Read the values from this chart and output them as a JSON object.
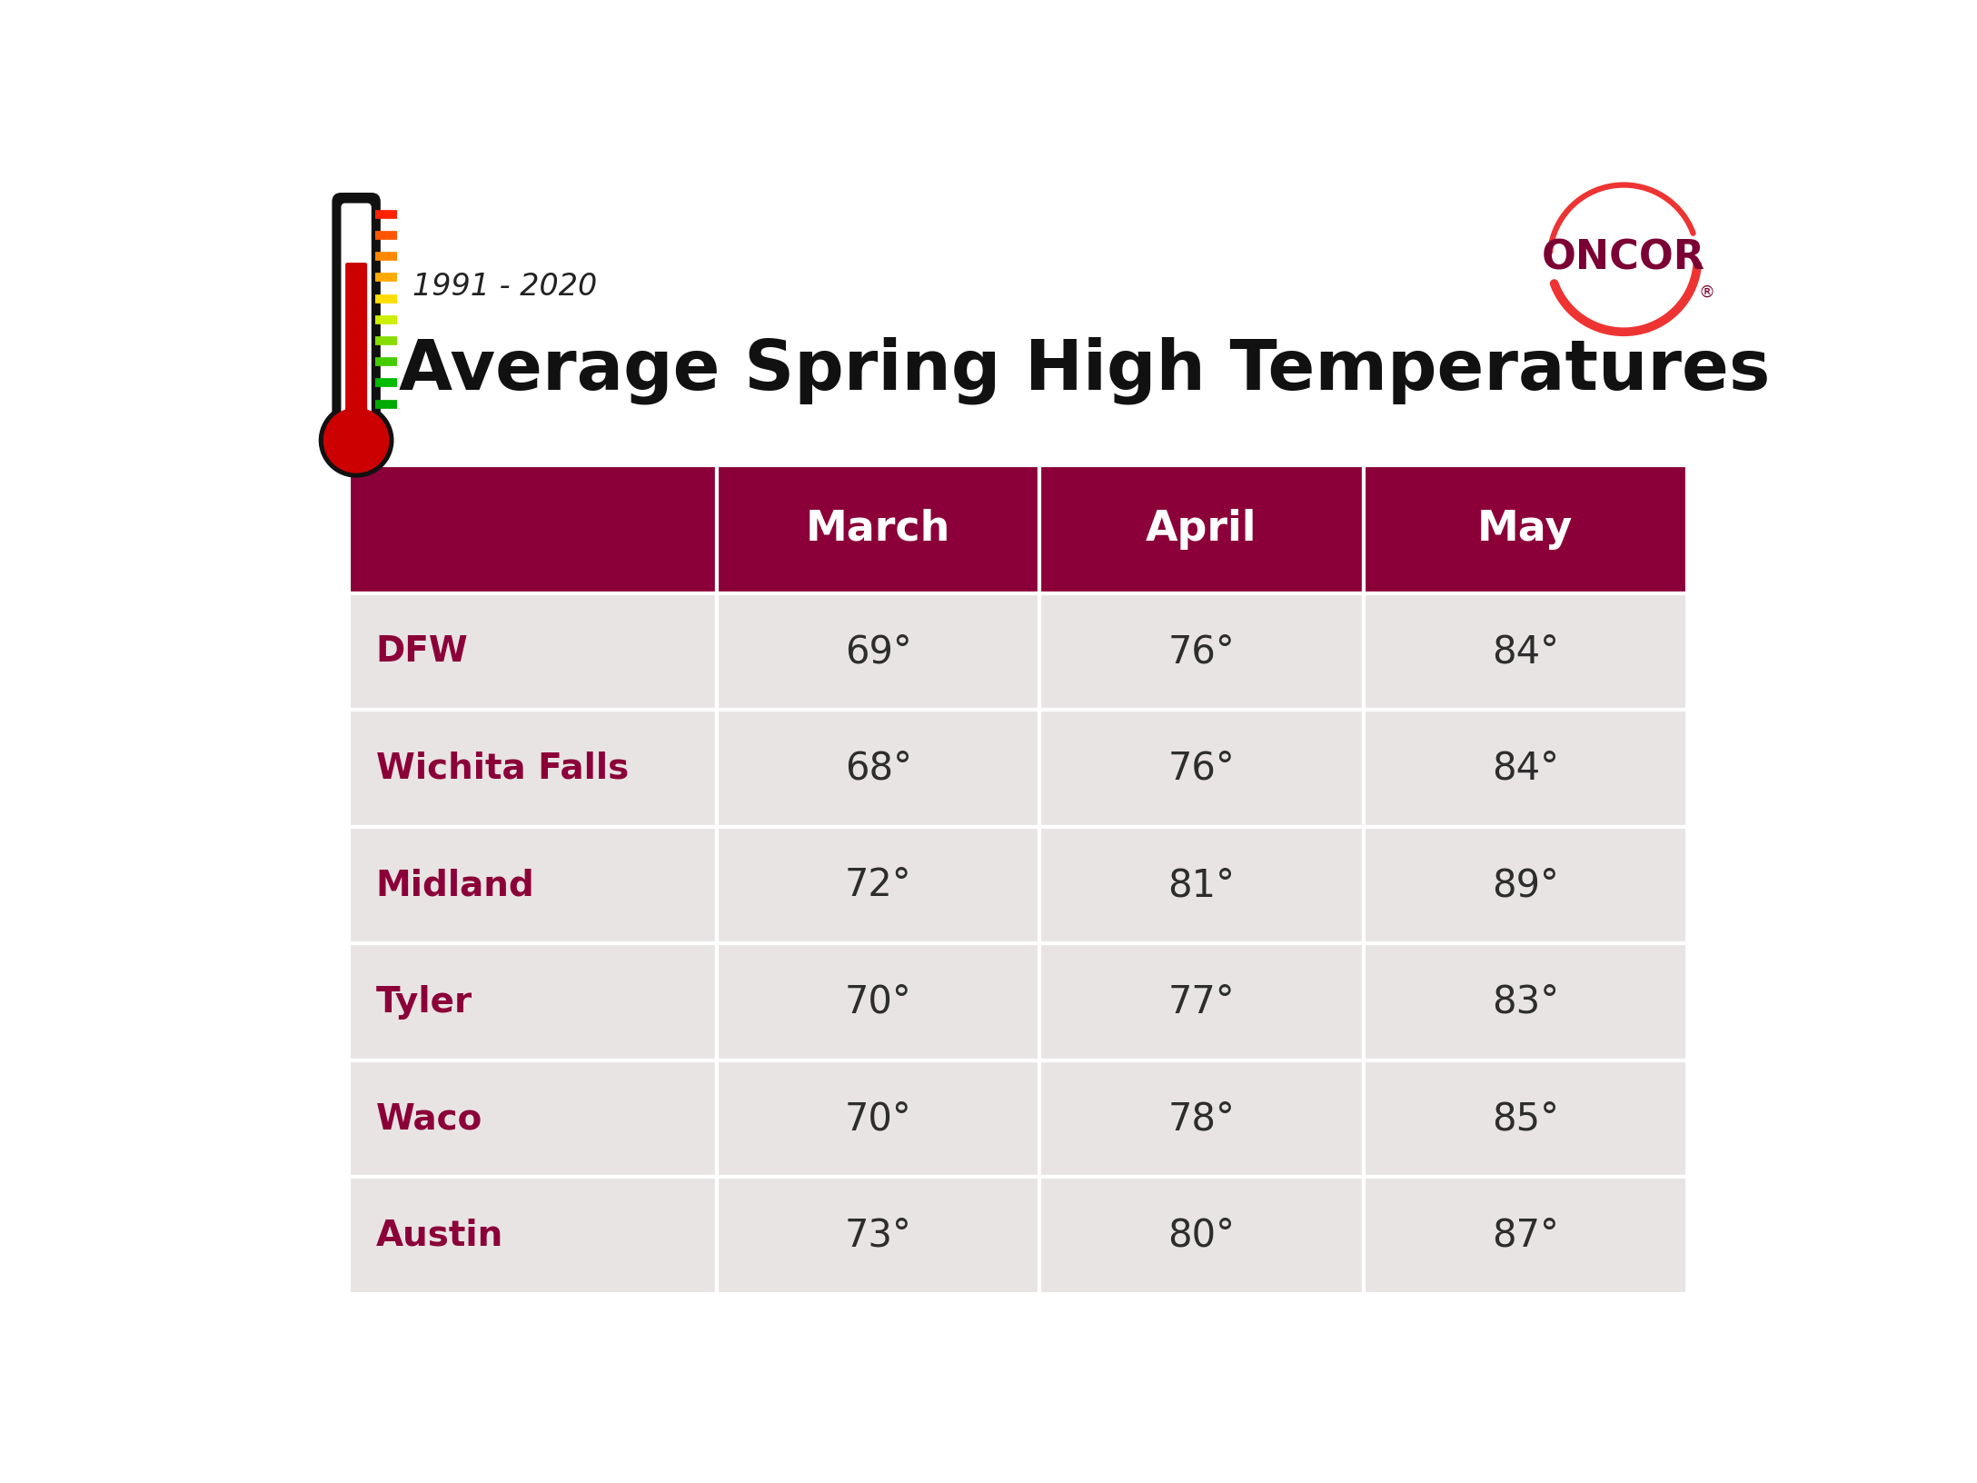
{
  "title_year": "1991 - 2020",
  "title_main": "Average Spring High Temperatures",
  "header_bg_color": "#8B0038",
  "header_text_color": "#FFFFFF",
  "row_bg_color": "#E8E4E4",
  "divider_color": "#FFFFFF",
  "text_color": "#2D2D2D",
  "city_text_color": "#8B0038",
  "columns": [
    "",
    "March",
    "April",
    "May"
  ],
  "rows": [
    [
      "DFW",
      "69°",
      "76°",
      "84°"
    ],
    [
      "Wichita Falls",
      "68°",
      "76°",
      "84°"
    ],
    [
      "Midland",
      "72°",
      "81°",
      "89°"
    ],
    [
      "Tyler",
      "70°",
      "77°",
      "83°"
    ],
    [
      "Waco",
      "70°",
      "78°",
      "85°"
    ],
    [
      "Austin",
      "73°",
      "80°",
      "87°"
    ]
  ],
  "tick_colors_top_to_bottom": [
    "#FF2200",
    "#FF5500",
    "#FF8800",
    "#FFAA00",
    "#FFDD00",
    "#CCEE00",
    "#88DD00",
    "#44CC00",
    "#00BB00",
    "#00AA00"
  ],
  "background_color": "#FFFFFF",
  "oncor_dark_color": "#7B0033",
  "oncor_swoosh_color": "#EE3333"
}
